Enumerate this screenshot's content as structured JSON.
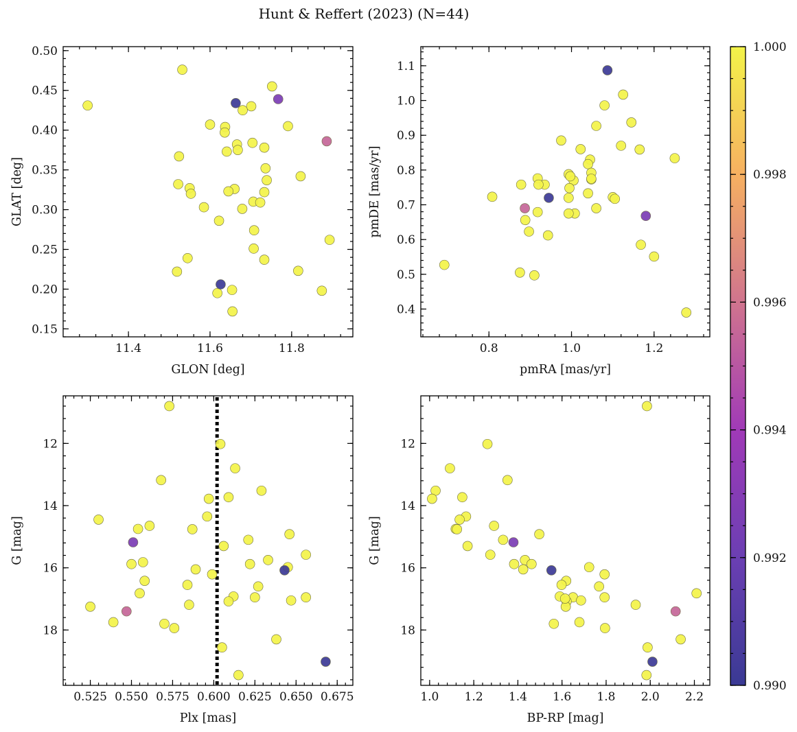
{
  "figure": {
    "title": "Hunt & Reffert (2023) (N=44)"
  },
  "colorbar": {
    "min": 0.99,
    "max": 1.0,
    "ticks": [
      0.99,
      0.992,
      0.994,
      0.996,
      0.998,
      1.0
    ],
    "tick_labels": [
      "0.990",
      "0.992",
      "0.994",
      "0.996",
      "0.998",
      "1.000"
    ]
  },
  "chart_data": [
    {
      "type": "scatter",
      "xlabel": "GLON [deg]",
      "ylabel": "GLAT [deg]",
      "xlim": [
        11.24,
        11.95
      ],
      "ylim": [
        0.14,
        0.505
      ],
      "xticks": [
        11.4,
        11.6,
        11.8
      ],
      "xtick_labels": [
        "11.4",
        "11.6",
        "11.8"
      ],
      "yticks": [
        0.15,
        0.2,
        0.25,
        0.3,
        0.35,
        0.4,
        0.45,
        0.5
      ],
      "ytick_labels": [
        "0.15",
        "0.20",
        "0.25",
        "0.30",
        "0.35",
        "0.40",
        "0.45",
        "0.50"
      ],
      "x": [
        11.3,
        11.532,
        11.752,
        11.701,
        11.68,
        11.6,
        11.637,
        11.636,
        11.666,
        11.791,
        11.704,
        11.733,
        11.641,
        11.668,
        11.524,
        11.736,
        11.822,
        11.739,
        11.522,
        11.55,
        11.66,
        11.645,
        11.553,
        11.733,
        11.706,
        11.723,
        11.585,
        11.679,
        11.622,
        11.708,
        11.893,
        11.707,
        11.545,
        11.733,
        11.519,
        11.816,
        11.654,
        11.618,
        11.874,
        11.655,
        11.663,
        11.767,
        11.886,
        11.626
      ],
      "y": [
        0.431,
        0.476,
        0.455,
        0.43,
        0.425,
        0.407,
        0.404,
        0.397,
        0.382,
        0.405,
        0.384,
        0.378,
        0.373,
        0.375,
        0.367,
        0.352,
        0.342,
        0.337,
        0.332,
        0.327,
        0.326,
        0.323,
        0.32,
        0.322,
        0.31,
        0.309,
        0.303,
        0.301,
        0.286,
        0.274,
        0.262,
        0.251,
        0.239,
        0.237,
        0.222,
        0.223,
        0.199,
        0.195,
        0.198,
        0.172,
        0.434,
        0.439,
        0.386,
        0.206
      ],
      "color_values": [
        1,
        1,
        1,
        1,
        1,
        1,
        1,
        1,
        1,
        1,
        1,
        1,
        1,
        1,
        1,
        1,
        1,
        1,
        1,
        1,
        1,
        1,
        1,
        1,
        1,
        1,
        1,
        1,
        1,
        1,
        1,
        1,
        1,
        1,
        1,
        1,
        1,
        1,
        1,
        1,
        0.9901,
        0.9926,
        0.9955,
        0.9901
      ]
    },
    {
      "type": "scatter",
      "xlabel": "pmRA [mas/yr]",
      "ylabel": "pmDE [mas/yr]",
      "xlim": [
        0.635,
        1.335
      ],
      "ylim": [
        0.32,
        1.155
      ],
      "xticks": [
        0.8,
        1.0,
        1.2
      ],
      "xtick_labels": [
        "0.8",
        "1.0",
        "1.2"
      ],
      "yticks": [
        0.4,
        0.5,
        0.6,
        0.7,
        0.8,
        0.9,
        1.0,
        1.1
      ],
      "ytick_labels": [
        "0.4",
        "0.5",
        "0.6",
        "0.7",
        "0.8",
        "0.9",
        "1.0",
        "1.1"
      ],
      "x": [
        1.125,
        1.08,
        1.06,
        1.145,
        0.975,
        1.12,
        1.165,
        1.022,
        1.25,
        1.045,
        1.04,
        0.993,
        1.048,
        1.005,
        0.918,
        0.935,
        0.878,
        0.92,
        0.995,
        0.997,
        1.048,
        1.04,
        0.808,
        1.1,
        1.105,
        0.993,
        1.06,
        0.918,
        1.008,
        0.888,
        0.897,
        0.943,
        1.168,
        0.692,
        1.2,
        0.875,
        0.91,
        1.278,
        0.993,
        1.048,
        0.945,
        0.887,
        1.18,
        1.087
      ],
      "y": [
        1.017,
        0.986,
        0.927,
        0.937,
        0.885,
        0.87,
        0.859,
        0.86,
        0.834,
        0.83,
        0.817,
        0.788,
        0.792,
        0.77,
        0.776,
        0.758,
        0.758,
        0.758,
        0.748,
        0.782,
        0.773,
        0.733,
        0.723,
        0.722,
        0.717,
        0.72,
        0.69,
        0.679,
        0.675,
        0.656,
        0.623,
        0.612,
        0.585,
        0.527,
        0.551,
        0.505,
        0.497,
        0.39,
        0.675,
        0.775,
        0.72,
        0.69,
        0.668,
        1.087
      ],
      "color_values": [
        1,
        1,
        1,
        1,
        1,
        1,
        1,
        1,
        1,
        1,
        1,
        1,
        1,
        1,
        1,
        1,
        1,
        1,
        1,
        1,
        1,
        1,
        1,
        1,
        1,
        1,
        1,
        1,
        1,
        1,
        1,
        1,
        1,
        1,
        1,
        1,
        1,
        1,
        1,
        1,
        0.9901,
        0.9955,
        0.9926,
        0.9901
      ]
    },
    {
      "type": "scatter",
      "xlabel": "Plx [mas]",
      "ylabel": "G [mag]",
      "xlim": [
        0.5085,
        0.6845
      ],
      "ylim": [
        19.78,
        10.47
      ],
      "y_inverted": true,
      "xticks": [
        0.525,
        0.55,
        0.575,
        0.6,
        0.625,
        0.65,
        0.675
      ],
      "xtick_labels": [
        "0.525",
        "0.550",
        "0.575",
        "0.600",
        "0.625",
        "0.650",
        "0.675"
      ],
      "yticks": [
        12,
        14,
        16,
        18
      ],
      "ytick_labels": [
        "12",
        "14",
        "16",
        "18"
      ],
      "reference_line": {
        "x": 0.602,
        "style": "dotted",
        "color": "#000000"
      },
      "x": [
        0.573,
        0.604,
        0.613,
        0.568,
        0.629,
        0.609,
        0.597,
        0.53,
        0.596,
        0.561,
        0.554,
        0.587,
        0.646,
        0.606,
        0.621,
        0.55,
        0.557,
        0.633,
        0.589,
        0.656,
        0.599,
        0.645,
        0.622,
        0.558,
        0.584,
        0.627,
        0.555,
        0.612,
        0.625,
        0.647,
        0.656,
        0.609,
        0.525,
        0.585,
        0.539,
        0.57,
        0.576,
        0.638,
        0.605,
        0.615,
        0.551,
        0.643,
        0.547,
        0.668
      ],
      "y": [
        10.8,
        12.02,
        12.8,
        13.18,
        13.52,
        13.73,
        13.78,
        14.45,
        14.35,
        14.65,
        14.75,
        14.76,
        14.92,
        15.3,
        15.1,
        15.88,
        15.82,
        15.75,
        16.05,
        15.58,
        16.21,
        15.98,
        15.88,
        16.42,
        16.55,
        16.6,
        16.82,
        16.92,
        16.95,
        17.05,
        16.95,
        17.08,
        17.25,
        17.19,
        17.75,
        17.8,
        17.94,
        18.3,
        18.56,
        19.45,
        15.18,
        16.08,
        17.4,
        19.02
      ],
      "color_values": [
        1,
        1,
        1,
        1,
        1,
        1,
        1,
        1,
        1,
        1,
        1,
        1,
        1,
        1,
        1,
        1,
        1,
        1,
        1,
        1,
        1,
        1,
        1,
        1,
        1,
        1,
        1,
        1,
        1,
        1,
        1,
        1,
        1,
        1,
        1,
        1,
        1,
        1,
        1,
        1,
        0.9926,
        0.9901,
        0.9955,
        0.9901
      ]
    },
    {
      "type": "scatter",
      "xlabel": "BP-RP [mag]",
      "ylabel": "G [mag]",
      "xlim": [
        0.96,
        2.27
      ],
      "ylim": [
        19.78,
        10.47
      ],
      "y_inverted": true,
      "xticks": [
        1.0,
        1.2,
        1.4,
        1.6,
        1.8,
        2.0,
        2.2
      ],
      "xtick_labels": [
        "1.0",
        "1.2",
        "1.4",
        "1.6",
        "1.8",
        "2.0",
        "2.2"
      ],
      "yticks": [
        12,
        14,
        16,
        18
      ],
      "ytick_labels": [
        "12",
        "14",
        "16",
        "18"
      ],
      "x": [
        1.985,
        1.262,
        1.092,
        1.353,
        1.027,
        1.011,
        1.148,
        1.165,
        1.136,
        1.292,
        1.118,
        1.124,
        1.497,
        1.172,
        1.333,
        1.723,
        1.275,
        1.383,
        1.432,
        1.462,
        1.424,
        1.793,
        1.619,
        1.598,
        1.768,
        1.59,
        1.65,
        1.621,
        1.617,
        1.686,
        1.793,
        2.21,
        1.934,
        1.563,
        1.679,
        1.795,
        1.988,
        2.138,
        1.983,
        1.38,
        1.552,
        2.115,
        2.01,
        1.614
      ],
      "y": [
        10.8,
        12.02,
        12.8,
        13.18,
        13.52,
        13.78,
        13.73,
        14.35,
        14.45,
        14.65,
        14.75,
        14.76,
        14.92,
        15.3,
        15.1,
        15.98,
        15.58,
        15.88,
        15.75,
        15.88,
        16.05,
        16.21,
        16.42,
        16.55,
        16.6,
        16.92,
        16.95,
        17.08,
        17.25,
        17.05,
        16.95,
        16.82,
        17.19,
        17.8,
        17.75,
        17.94,
        18.56,
        18.3,
        19.45,
        15.18,
        16.08,
        17.4,
        19.02,
        16.99
      ],
      "color_values": [
        1,
        1,
        1,
        1,
        1,
        1,
        1,
        1,
        1,
        1,
        1,
        1,
        1,
        1,
        1,
        1,
        1,
        1,
        1,
        1,
        1,
        1,
        1,
        1,
        1,
        1,
        1,
        1,
        1,
        1,
        1,
        1,
        1,
        1,
        1,
        1,
        1,
        1,
        1,
        0.9926,
        0.9901,
        0.9955,
        0.9901,
        1
      ]
    }
  ]
}
